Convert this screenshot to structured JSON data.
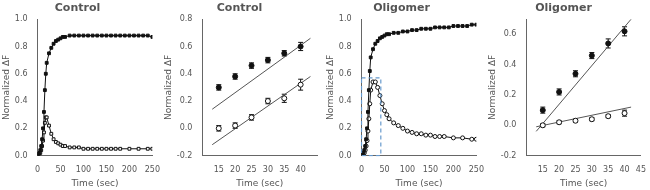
{
  "chart_data": [
    {
      "type": "line",
      "title": "Control",
      "x_label": "Time (sec)",
      "y_label": "Normalized ΔF",
      "xlim": [
        0,
        250
      ],
      "ylim": [
        0,
        1.0
      ],
      "xticks": [
        0,
        50,
        100,
        150,
        200,
        250
      ],
      "yticks": [
        {
          "value": 0.0,
          "label": "0.0"
        },
        0.2,
        0.4,
        0.6,
        0.8,
        {
          "value": 1.0,
          "label": "1.0"
        }
      ],
      "grid": false,
      "series": [
        {
          "color": "#111111",
          "marker": "square",
          "line_style": "solid",
          "x": [
            0,
            2,
            4,
            6,
            8,
            10,
            12,
            14,
            16,
            18,
            20,
            25,
            30,
            35,
            40,
            45,
            50,
            55,
            60,
            70,
            80,
            90,
            100,
            110,
            120,
            130,
            140,
            150,
            160,
            170,
            180,
            190,
            200,
            210,
            220,
            230,
            240,
            250
          ],
          "values": [
            0.0,
            0.01,
            0.02,
            0.04,
            0.07,
            0.12,
            0.2,
            0.32,
            0.48,
            0.6,
            0.68,
            0.75,
            0.79,
            0.82,
            0.84,
            0.85,
            0.86,
            0.87,
            0.87,
            0.88,
            0.88,
            0.88,
            0.88,
            0.88,
            0.88,
            0.88,
            0.88,
            0.88,
            0.88,
            0.88,
            0.88,
            0.88,
            0.88,
            0.88,
            0.88,
            0.88,
            0.88,
            0.87
          ]
        },
        {
          "color": "#111111",
          "marker": "square-open",
          "line_style": "solid",
          "x": [
            0,
            2,
            4,
            6,
            8,
            10,
            12,
            14,
            16,
            18,
            20,
            25,
            30,
            35,
            40,
            45,
            50,
            55,
            60,
            70,
            80,
            90,
            100,
            110,
            120,
            130,
            140,
            150,
            160,
            170,
            180,
            200,
            220,
            240,
            250
          ],
          "values": [
            0.0,
            0.01,
            0.01,
            0.02,
            0.04,
            0.07,
            0.11,
            0.17,
            0.24,
            0.28,
            0.28,
            0.22,
            0.16,
            0.12,
            0.1,
            0.09,
            0.08,
            0.07,
            0.07,
            0.06,
            0.06,
            0.06,
            0.05,
            0.05,
            0.05,
            0.05,
            0.05,
            0.05,
            0.05,
            0.05,
            0.05,
            0.05,
            0.05,
            0.05,
            0.05
          ]
        }
      ]
    },
    {
      "type": "scatter",
      "title": "Control",
      "x_label": "Time (sec)",
      "y_label": "Normalized ΔF",
      "xlim": [
        10,
        45
      ],
      "ylim": [
        -0.2,
        0.8
      ],
      "xticks": [
        15,
        20,
        25,
        30,
        35,
        40
      ],
      "yticks": [
        -0.2,
        {
          "value": 0.0,
          "label": "0.0"
        },
        0.2,
        0.4,
        0.6,
        0.8
      ],
      "grid": false,
      "series": [
        {
          "type": "scatter",
          "color": "#111111",
          "marker": "circle",
          "x": [
            15,
            20,
            25,
            30,
            35,
            40
          ],
          "values": [
            0.3,
            0.38,
            0.46,
            0.5,
            0.55,
            0.6
          ],
          "err": [
            0.02,
            0.02,
            0.02,
            0.02,
            0.02,
            0.03
          ]
        },
        {
          "type": "scatter",
          "color": "#111111",
          "marker": "circle-open",
          "x": [
            15,
            20,
            25,
            30,
            35,
            40
          ],
          "values": [
            0.0,
            0.02,
            0.08,
            0.2,
            0.22,
            0.32
          ],
          "err": [
            0.02,
            0.02,
            0.02,
            0.02,
            0.03,
            0.04
          ]
        },
        {
          "type": "line",
          "color": "#555555",
          "marker": "none",
          "line_style": "solid",
          "x": [
            13,
            43
          ],
          "values": [
            0.14,
            0.66
          ]
        },
        {
          "type": "line",
          "color": "#555555",
          "marker": "none",
          "line_style": "solid",
          "x": [
            13,
            43
          ],
          "values": [
            -0.12,
            0.38
          ]
        }
      ]
    },
    {
      "type": "line",
      "title": "Oligomer",
      "x_label": "Time (sec)",
      "y_label": "Normalized ΔF",
      "xlim": [
        0,
        250
      ],
      "ylim": [
        0.0,
        1.0
      ],
      "xticks": [
        0,
        50,
        100,
        150,
        200,
        250
      ],
      "yticks": [
        {
          "value": 0.0,
          "label": "0.0"
        },
        0.2,
        0.4,
        0.6,
        0.8,
        {
          "value": 1.0,
          "label": "1.0"
        }
      ],
      "grid": false,
      "box": {
        "x": 0,
        "y": 0.0,
        "width": 42,
        "height": 0.57,
        "color": "#6699cc",
        "line_style": "dashed"
      },
      "series": [
        {
          "color": "#111111",
          "marker": "square",
          "line_style": "solid",
          "x": [
            0,
            2,
            4,
            6,
            8,
            10,
            12,
            14,
            16,
            18,
            20,
            25,
            30,
            35,
            40,
            45,
            50,
            55,
            60,
            70,
            80,
            90,
            100,
            110,
            120,
            130,
            140,
            150,
            160,
            170,
            180,
            190,
            200,
            210,
            220,
            230,
            240,
            250
          ],
          "values": [
            0.0,
            0.01,
            0.02,
            0.04,
            0.07,
            0.12,
            0.2,
            0.32,
            0.48,
            0.62,
            0.72,
            0.78,
            0.82,
            0.84,
            0.86,
            0.87,
            0.88,
            0.89,
            0.89,
            0.9,
            0.9,
            0.91,
            0.91,
            0.92,
            0.92,
            0.93,
            0.93,
            0.93,
            0.94,
            0.94,
            0.94,
            0.94,
            0.95,
            0.95,
            0.95,
            0.95,
            0.96,
            0.96
          ]
        },
        {
          "color": "#111111",
          "marker": "circle-open",
          "line_style": "solid",
          "x": [
            0,
            2,
            4,
            6,
            8,
            10,
            12,
            14,
            16,
            18,
            20,
            25,
            30,
            35,
            40,
            45,
            50,
            55,
            60,
            70,
            80,
            90,
            100,
            110,
            120,
            130,
            140,
            150,
            160,
            170,
            180,
            200,
            220,
            240,
            250
          ],
          "values": [
            0.0,
            0.01,
            0.01,
            0.02,
            0.04,
            0.07,
            0.11,
            0.18,
            0.27,
            0.38,
            0.48,
            0.54,
            0.54,
            0.5,
            0.44,
            0.38,
            0.33,
            0.3,
            0.27,
            0.24,
            0.22,
            0.2,
            0.18,
            0.17,
            0.16,
            0.16,
            0.15,
            0.15,
            0.14,
            0.14,
            0.14,
            0.13,
            0.13,
            0.12,
            0.12
          ]
        }
      ]
    },
    {
      "type": "scatter",
      "title": "Oligomer",
      "x_label": "Time (sec)",
      "y_label": "Normalized ΔF",
      "xlim": [
        10,
        45
      ],
      "ylim": [
        -0.2,
        0.7
      ],
      "xticks": [
        15,
        20,
        25,
        30,
        35,
        40,
        45
      ],
      "yticks": [
        -0.2,
        {
          "value": 0.0,
          "label": "0.0"
        },
        0.2,
        0.4,
        0.6
      ],
      "grid": false,
      "series": [
        {
          "type": "scatter",
          "color": "#111111",
          "marker": "circle",
          "x": [
            15,
            20,
            25,
            30,
            35,
            40
          ],
          "values": [
            0.1,
            0.22,
            0.34,
            0.46,
            0.54,
            0.62
          ],
          "err": [
            0.02,
            0.02,
            0.02,
            0.02,
            0.03,
            0.03
          ]
        },
        {
          "type": "scatter",
          "color": "#111111",
          "marker": "circle-open",
          "x": [
            15,
            20,
            25,
            30,
            35,
            40
          ],
          "values": [
            0.0,
            0.02,
            0.03,
            0.04,
            0.06,
            0.08
          ],
          "err": [
            0.01,
            0.01,
            0.01,
            0.01,
            0.01,
            0.02
          ]
        },
        {
          "type": "line",
          "color": "#555555",
          "marker": "none",
          "line_style": "solid",
          "x": [
            13,
            42
          ],
          "values": [
            -0.04,
            0.7
          ]
        },
        {
          "type": "line",
          "color": "#555555",
          "marker": "none",
          "line_style": "solid",
          "x": [
            13,
            42
          ],
          "values": [
            -0.01,
            0.12
          ]
        }
      ]
    }
  ]
}
